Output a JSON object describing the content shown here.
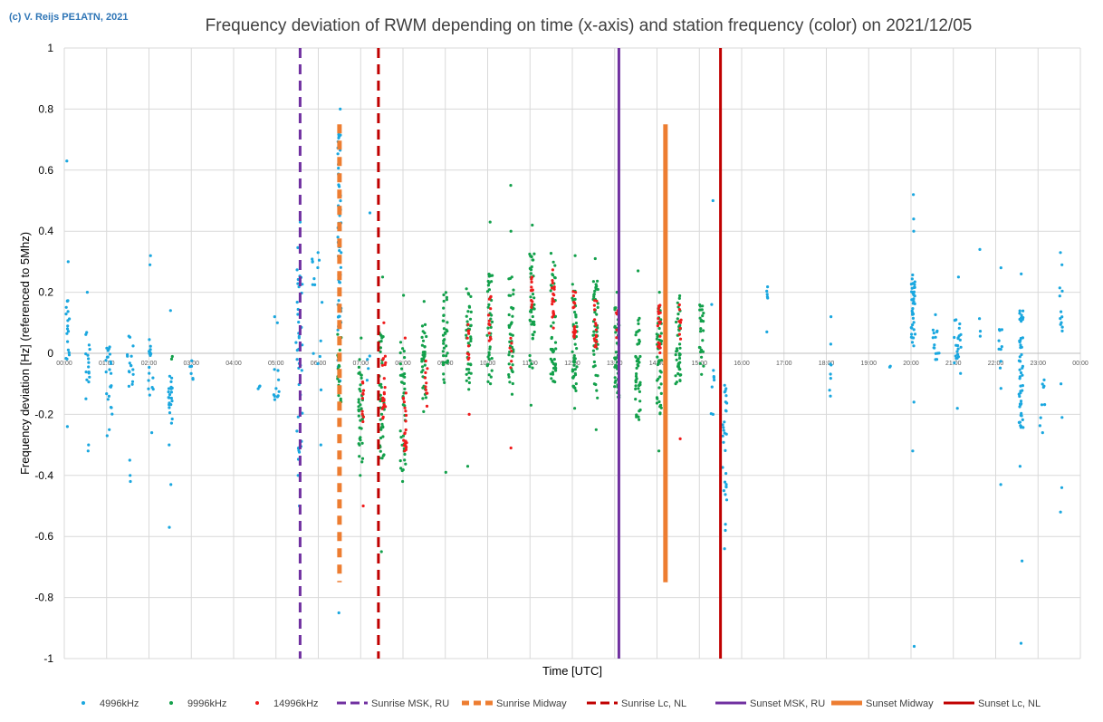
{
  "copyright": "(c) V. Reijs  PE1ATN, 2021",
  "chart_data": {
    "type": "scatter",
    "title": "Frequency deviation of RWM depending on time (x-axis) and station frequency (color) on 2021/12/05",
    "xlabel": "Time [UTC]",
    "ylabel": "Frequency deviation [Hz] (referenced to 5Mhz)",
    "ylim": [
      -1,
      1
    ],
    "xlim_hours": [
      0,
      24
    ],
    "grid": true,
    "legend_position": "bottom",
    "y_ticks": [
      "1",
      "0.8",
      "0.6",
      "0.4",
      "0.2",
      "0",
      "-0.2",
      "-0.4",
      "-0.6",
      "-0.8",
      "-1"
    ],
    "x_ticks": [
      "00:00",
      "01:00",
      "02:00",
      "03:00",
      "04:00",
      "05:00",
      "06:00",
      "07:00",
      "08:00",
      "09:00",
      "10:00",
      "11:00",
      "12:00",
      "13:00",
      "14:00",
      "15:00",
      "16:00",
      "17:00",
      "18:00",
      "19:00",
      "20:00",
      "21:00",
      "22:00",
      "23:00",
      "00:00"
    ],
    "series": [
      {
        "name": "4996kHz",
        "color": "#1aa7df",
        "marker": "dot",
        "clusters": [
          {
            "t": 0.08,
            "spread": 0.04,
            "center": 0.08,
            "range": 0.1,
            "n": 18,
            "out": [
              0.63,
              0.3,
              -0.24
            ]
          },
          {
            "t": 0.55,
            "spread": 0.06,
            "center": -0.05,
            "range": 0.13,
            "n": 16,
            "out": [
              0.2,
              -0.3,
              -0.32
            ]
          },
          {
            "t": 1.05,
            "spread": 0.08,
            "center": -0.08,
            "range": 0.12,
            "n": 22,
            "out": [
              -0.25,
              -0.27
            ]
          },
          {
            "t": 1.55,
            "spread": 0.08,
            "center": -0.03,
            "range": 0.1,
            "n": 16,
            "out": [
              -0.4,
              -0.42,
              -0.35
            ]
          },
          {
            "t": 2.05,
            "spread": 0.06,
            "center": -0.02,
            "range": 0.12,
            "n": 16,
            "out": [
              0.29,
              0.32,
              -0.26
            ]
          },
          {
            "t": 2.5,
            "spread": 0.05,
            "center": -0.15,
            "range": 0.08,
            "n": 22,
            "out": [
              0.14,
              -0.3,
              -0.43,
              -0.57
            ]
          },
          {
            "t": 3.0,
            "spread": 0.05,
            "center": -0.05,
            "range": 0.05,
            "n": 6,
            "out": []
          },
          {
            "t": 4.6,
            "spread": 0.05,
            "center": -0.11,
            "range": 0.02,
            "n": 3,
            "out": []
          },
          {
            "t": 5.0,
            "spread": 0.08,
            "center": -0.1,
            "range": 0.06,
            "n": 10,
            "out": [
              0.1,
              0.12
            ]
          },
          {
            "t": 5.55,
            "spread": 0.08,
            "center": 0.0,
            "range": 0.35,
            "n": 40,
            "out": [
              0.43,
              -0.4,
              -0.5
            ]
          },
          {
            "t": 6.0,
            "spread": 0.15,
            "center": 0.1,
            "range": 0.22,
            "n": 14,
            "out": [
              0.33,
              -0.3
            ]
          },
          {
            "t": 6.5,
            "spread": 0.04,
            "center": 0.3,
            "range": 0.42,
            "n": 60,
            "out": [
              0.8,
              -0.55,
              -0.85
            ]
          },
          {
            "t": 7.2,
            "spread": 0.05,
            "center": -0.05,
            "range": 0.06,
            "n": 4,
            "out": [
              0.46
            ]
          },
          {
            "t": 15.3,
            "spread": 0.08,
            "center": -0.12,
            "range": 0.08,
            "n": 6,
            "out": [
              0.5,
              0.16,
              -0.2
            ]
          },
          {
            "t": 15.6,
            "spread": 0.05,
            "center": -0.3,
            "range": 0.2,
            "n": 26,
            "out": [
              -0.45,
              -0.56,
              -0.58,
              -0.64
            ]
          },
          {
            "t": 16.6,
            "spread": 0.02,
            "center": 0.2,
            "range": 0.02,
            "n": 5,
            "out": [
              0.07
            ]
          },
          {
            "t": 18.1,
            "spread": 0.04,
            "center": -0.08,
            "range": 0.05,
            "n": 5,
            "out": [
              0.12,
              0.03,
              -0.14
            ]
          },
          {
            "t": 19.5,
            "spread": 0.04,
            "center": -0.06,
            "range": 0.02,
            "n": 2,
            "out": []
          },
          {
            "t": 20.05,
            "spread": 0.05,
            "center": 0.14,
            "range": 0.12,
            "n": 40,
            "out": [
              0.52,
              0.44,
              0.4,
              -0.16,
              -0.32,
              -0.96
            ]
          },
          {
            "t": 20.6,
            "spread": 0.08,
            "center": 0.05,
            "range": 0.08,
            "n": 14,
            "out": [
              -0.02
            ]
          },
          {
            "t": 21.1,
            "spread": 0.08,
            "center": 0.03,
            "range": 0.1,
            "n": 22,
            "out": [
              0.25,
              -0.18
            ]
          },
          {
            "t": 21.6,
            "spread": 0.06,
            "center": 0.1,
            "range": 0.05,
            "n": 3,
            "out": [
              0.34
            ]
          },
          {
            "t": 22.1,
            "spread": 0.05,
            "center": -0.02,
            "range": 0.1,
            "n": 10,
            "out": [
              0.28,
              -0.43
            ]
          },
          {
            "t": 22.6,
            "spread": 0.05,
            "center": -0.05,
            "range": 0.2,
            "n": 50,
            "out": [
              0.26,
              -0.37,
              -0.68,
              -0.95
            ]
          },
          {
            "t": 23.1,
            "spread": 0.06,
            "center": -0.15,
            "range": 0.1,
            "n": 8,
            "out": [
              -0.26
            ]
          },
          {
            "t": 23.55,
            "spread": 0.04,
            "center": 0.15,
            "range": 0.08,
            "n": 10,
            "out": [
              0.33,
              0.29,
              -0.1,
              -0.21,
              -0.44,
              -0.52
            ]
          }
        ]
      },
      {
        "name": "9996kHz",
        "color": "#13a04b",
        "marker": "dot",
        "clusters": [
          {
            "t": 2.55,
            "spread": 0.02,
            "center": 0.0,
            "range": 0.02,
            "n": 2,
            "out": []
          },
          {
            "t": 6.5,
            "spread": 0.05,
            "center": -0.05,
            "range": 0.12,
            "n": 18,
            "out": []
          },
          {
            "t": 7.0,
            "spread": 0.05,
            "center": -0.18,
            "range": 0.18,
            "n": 35,
            "out": [
              0.05,
              -0.4
            ]
          },
          {
            "t": 7.5,
            "spread": 0.06,
            "center": -0.15,
            "range": 0.22,
            "n": 40,
            "out": [
              0.25,
              -0.65
            ]
          },
          {
            "t": 8.0,
            "spread": 0.06,
            "center": -0.18,
            "range": 0.22,
            "n": 40,
            "out": [
              0.19,
              -0.42
            ]
          },
          {
            "t": 8.5,
            "spread": 0.06,
            "center": -0.05,
            "range": 0.15,
            "n": 35,
            "out": [
              0.17
            ]
          },
          {
            "t": 9.0,
            "spread": 0.06,
            "center": 0.05,
            "range": 0.15,
            "n": 35,
            "out": [
              -0.39
            ]
          },
          {
            "t": 9.55,
            "spread": 0.06,
            "center": 0.05,
            "range": 0.17,
            "n": 40,
            "out": [
              -0.37
            ]
          },
          {
            "t": 10.05,
            "spread": 0.06,
            "center": 0.08,
            "range": 0.18,
            "n": 40,
            "out": [
              0.43
            ]
          },
          {
            "t": 10.55,
            "spread": 0.06,
            "center": 0.05,
            "range": 0.2,
            "n": 40,
            "out": [
              0.55,
              0.4
            ]
          },
          {
            "t": 11.05,
            "spread": 0.06,
            "center": 0.15,
            "range": 0.2,
            "n": 45,
            "out": [
              0.42,
              -0.17
            ]
          },
          {
            "t": 11.55,
            "spread": 0.06,
            "center": 0.12,
            "range": 0.22,
            "n": 45,
            "out": []
          },
          {
            "t": 12.05,
            "spread": 0.06,
            "center": 0.05,
            "range": 0.2,
            "n": 45,
            "out": [
              0.32,
              -0.18
            ]
          },
          {
            "t": 12.55,
            "spread": 0.06,
            "center": 0.05,
            "range": 0.2,
            "n": 45,
            "out": [
              0.31,
              -0.25
            ]
          },
          {
            "t": 13.05,
            "spread": 0.06,
            "center": 0.0,
            "range": 0.15,
            "n": 45,
            "out": [
              0.2
            ]
          },
          {
            "t": 13.55,
            "spread": 0.06,
            "center": -0.05,
            "range": 0.17,
            "n": 45,
            "out": [
              0.27
            ]
          },
          {
            "t": 14.05,
            "spread": 0.06,
            "center": -0.02,
            "range": 0.18,
            "n": 45,
            "out": [
              0.2,
              -0.32
            ]
          },
          {
            "t": 14.5,
            "spread": 0.06,
            "center": 0.05,
            "range": 0.15,
            "n": 45,
            "out": []
          },
          {
            "t": 15.05,
            "spread": 0.05,
            "center": 0.05,
            "range": 0.12,
            "n": 25,
            "out": []
          }
        ]
      },
      {
        "name": "14996kHz",
        "color": "#ef1c1c",
        "marker": "dot",
        "clusters": [
          {
            "t": 7.05,
            "spread": 0.03,
            "center": -0.15,
            "range": 0.08,
            "n": 10,
            "out": [
              -0.5
            ]
          },
          {
            "t": 7.55,
            "spread": 0.04,
            "center": -0.12,
            "range": 0.12,
            "n": 22,
            "out": [
              0.1
            ]
          },
          {
            "t": 8.05,
            "spread": 0.04,
            "center": -0.22,
            "range": 0.1,
            "n": 22,
            "out": [
              0.05
            ]
          },
          {
            "t": 8.55,
            "spread": 0.03,
            "center": -0.1,
            "range": 0.08,
            "n": 10,
            "out": []
          },
          {
            "t": 9.55,
            "spread": 0.03,
            "center": 0.05,
            "range": 0.07,
            "n": 10,
            "out": [
              -0.2
            ]
          },
          {
            "t": 10.05,
            "spread": 0.03,
            "center": 0.12,
            "range": 0.08,
            "n": 12,
            "out": []
          },
          {
            "t": 10.55,
            "spread": 0.03,
            "center": 0.0,
            "range": 0.06,
            "n": 6,
            "out": [
              -0.31
            ]
          },
          {
            "t": 11.05,
            "spread": 0.03,
            "center": 0.2,
            "range": 0.05,
            "n": 12,
            "out": []
          },
          {
            "t": 11.55,
            "spread": 0.03,
            "center": 0.18,
            "range": 0.1,
            "n": 18,
            "out": []
          },
          {
            "t": 12.05,
            "spread": 0.03,
            "center": 0.13,
            "range": 0.08,
            "n": 18,
            "out": []
          },
          {
            "t": 12.55,
            "spread": 0.03,
            "center": 0.1,
            "range": 0.08,
            "n": 16,
            "out": []
          },
          {
            "t": 13.05,
            "spread": 0.03,
            "center": 0.1,
            "range": 0.05,
            "n": 6,
            "out": []
          },
          {
            "t": 14.05,
            "spread": 0.03,
            "center": 0.08,
            "range": 0.08,
            "n": 20,
            "out": []
          },
          {
            "t": 14.55,
            "spread": 0.03,
            "center": 0.1,
            "range": 0.06,
            "n": 8,
            "out": [
              -0.28
            ]
          }
        ]
      },
      {
        "name": "Sunrise MSK, RU",
        "color": "#7030a0",
        "style": "dashed",
        "x_hours": 5.57
      },
      {
        "name": "Sunrise Midway",
        "color": "#ed7d31",
        "style": "dashed",
        "x_hours": 6.5,
        "y_range": [
          -0.75,
          0.75
        ]
      },
      {
        "name": "Sunrise Lc, NL",
        "color": "#c00000",
        "style": "dashed",
        "x_hours": 7.42
      },
      {
        "name": "Sunset MSK, RU",
        "color": "#7030a0",
        "style": "solid",
        "x_hours": 13.1
      },
      {
        "name": "Sunset Midway",
        "color": "#ed7d31",
        "style": "solid",
        "x_hours": 14.2,
        "y_range": [
          -0.75,
          0.75
        ]
      },
      {
        "name": "Sunset Lc, NL",
        "color": "#c00000",
        "style": "solid",
        "x_hours": 15.5
      }
    ]
  }
}
